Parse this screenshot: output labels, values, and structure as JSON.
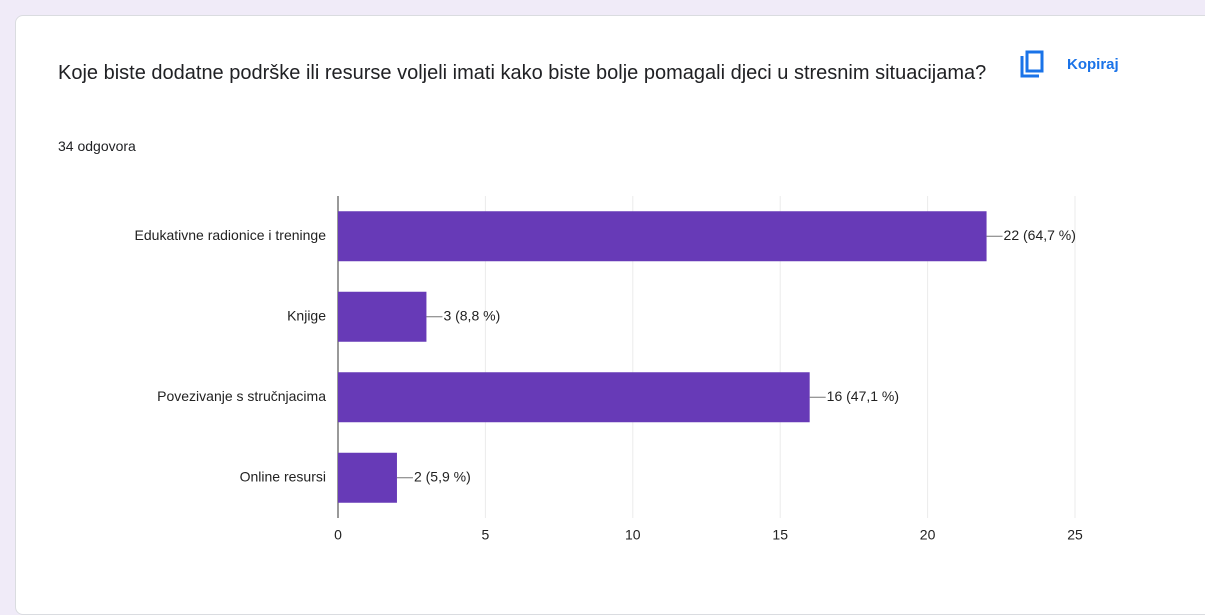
{
  "copy_button": "Kopiraj",
  "chart_data": {
    "type": "bar",
    "orientation": "horizontal",
    "title": "Koje biste dodatne podrške ili resurse voljeli imati kako biste bolje pomagali djeci u stresnim situacijama?",
    "subtitle": "34 odgovora",
    "categories": [
      "Edukativne radionice i treninge",
      "Knjige",
      "Povezivanje s stručnjacima",
      "Online resursi"
    ],
    "values": [
      22,
      3,
      16,
      2
    ],
    "value_labels": [
      "22 (64,7 %)",
      "3 (8,8 %)",
      "16 (47,1 %)",
      "2 (5,9 %)"
    ],
    "color": "#673ab7",
    "xlim": [
      0,
      25
    ],
    "xticks": [
      0,
      5,
      10,
      15,
      20,
      25
    ],
    "grid": true
  }
}
